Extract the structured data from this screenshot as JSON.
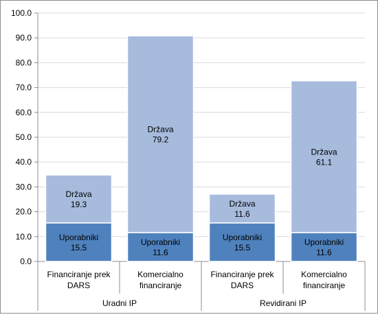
{
  "chart_data": {
    "type": "bar",
    "stacked": true,
    "grid": true,
    "legend": "none",
    "ylim": [
      0,
      100
    ],
    "yticks": [
      "0.0",
      "10.0",
      "20.0",
      "30.0",
      "40.0",
      "50.0",
      "60.0",
      "70.0",
      "80.0",
      "90.0",
      "100.0"
    ],
    "groups": [
      {
        "label": "Uradni IP",
        "categories": [
          "Financiranje prek DARS",
          "Komercialno financiranje"
        ]
      },
      {
        "label": "Revidirani IP",
        "categories": [
          "Financiranje prek DARS",
          "Komercialno financiranje"
        ]
      }
    ],
    "categories": [
      [
        "Financiranje prek",
        "DARS"
      ],
      [
        "Komercialno",
        "financiranje"
      ],
      [
        "Financiranje prek",
        "DARS"
      ],
      [
        "Komercialno",
        "financiranje"
      ]
    ],
    "series": [
      {
        "name": "Uporabniki",
        "values": [
          15.5,
          11.6,
          15.5,
          11.6
        ],
        "labels": [
          "15.5",
          "11.6",
          "15.5",
          "11.6"
        ],
        "color": "#4f81bd"
      },
      {
        "name": "Država",
        "values": [
          19.3,
          79.2,
          11.6,
          61.1
        ],
        "labels": [
          "19.3",
          "79.2",
          "11.6",
          "61.1"
        ],
        "color": "#a7bbdd"
      }
    ]
  }
}
